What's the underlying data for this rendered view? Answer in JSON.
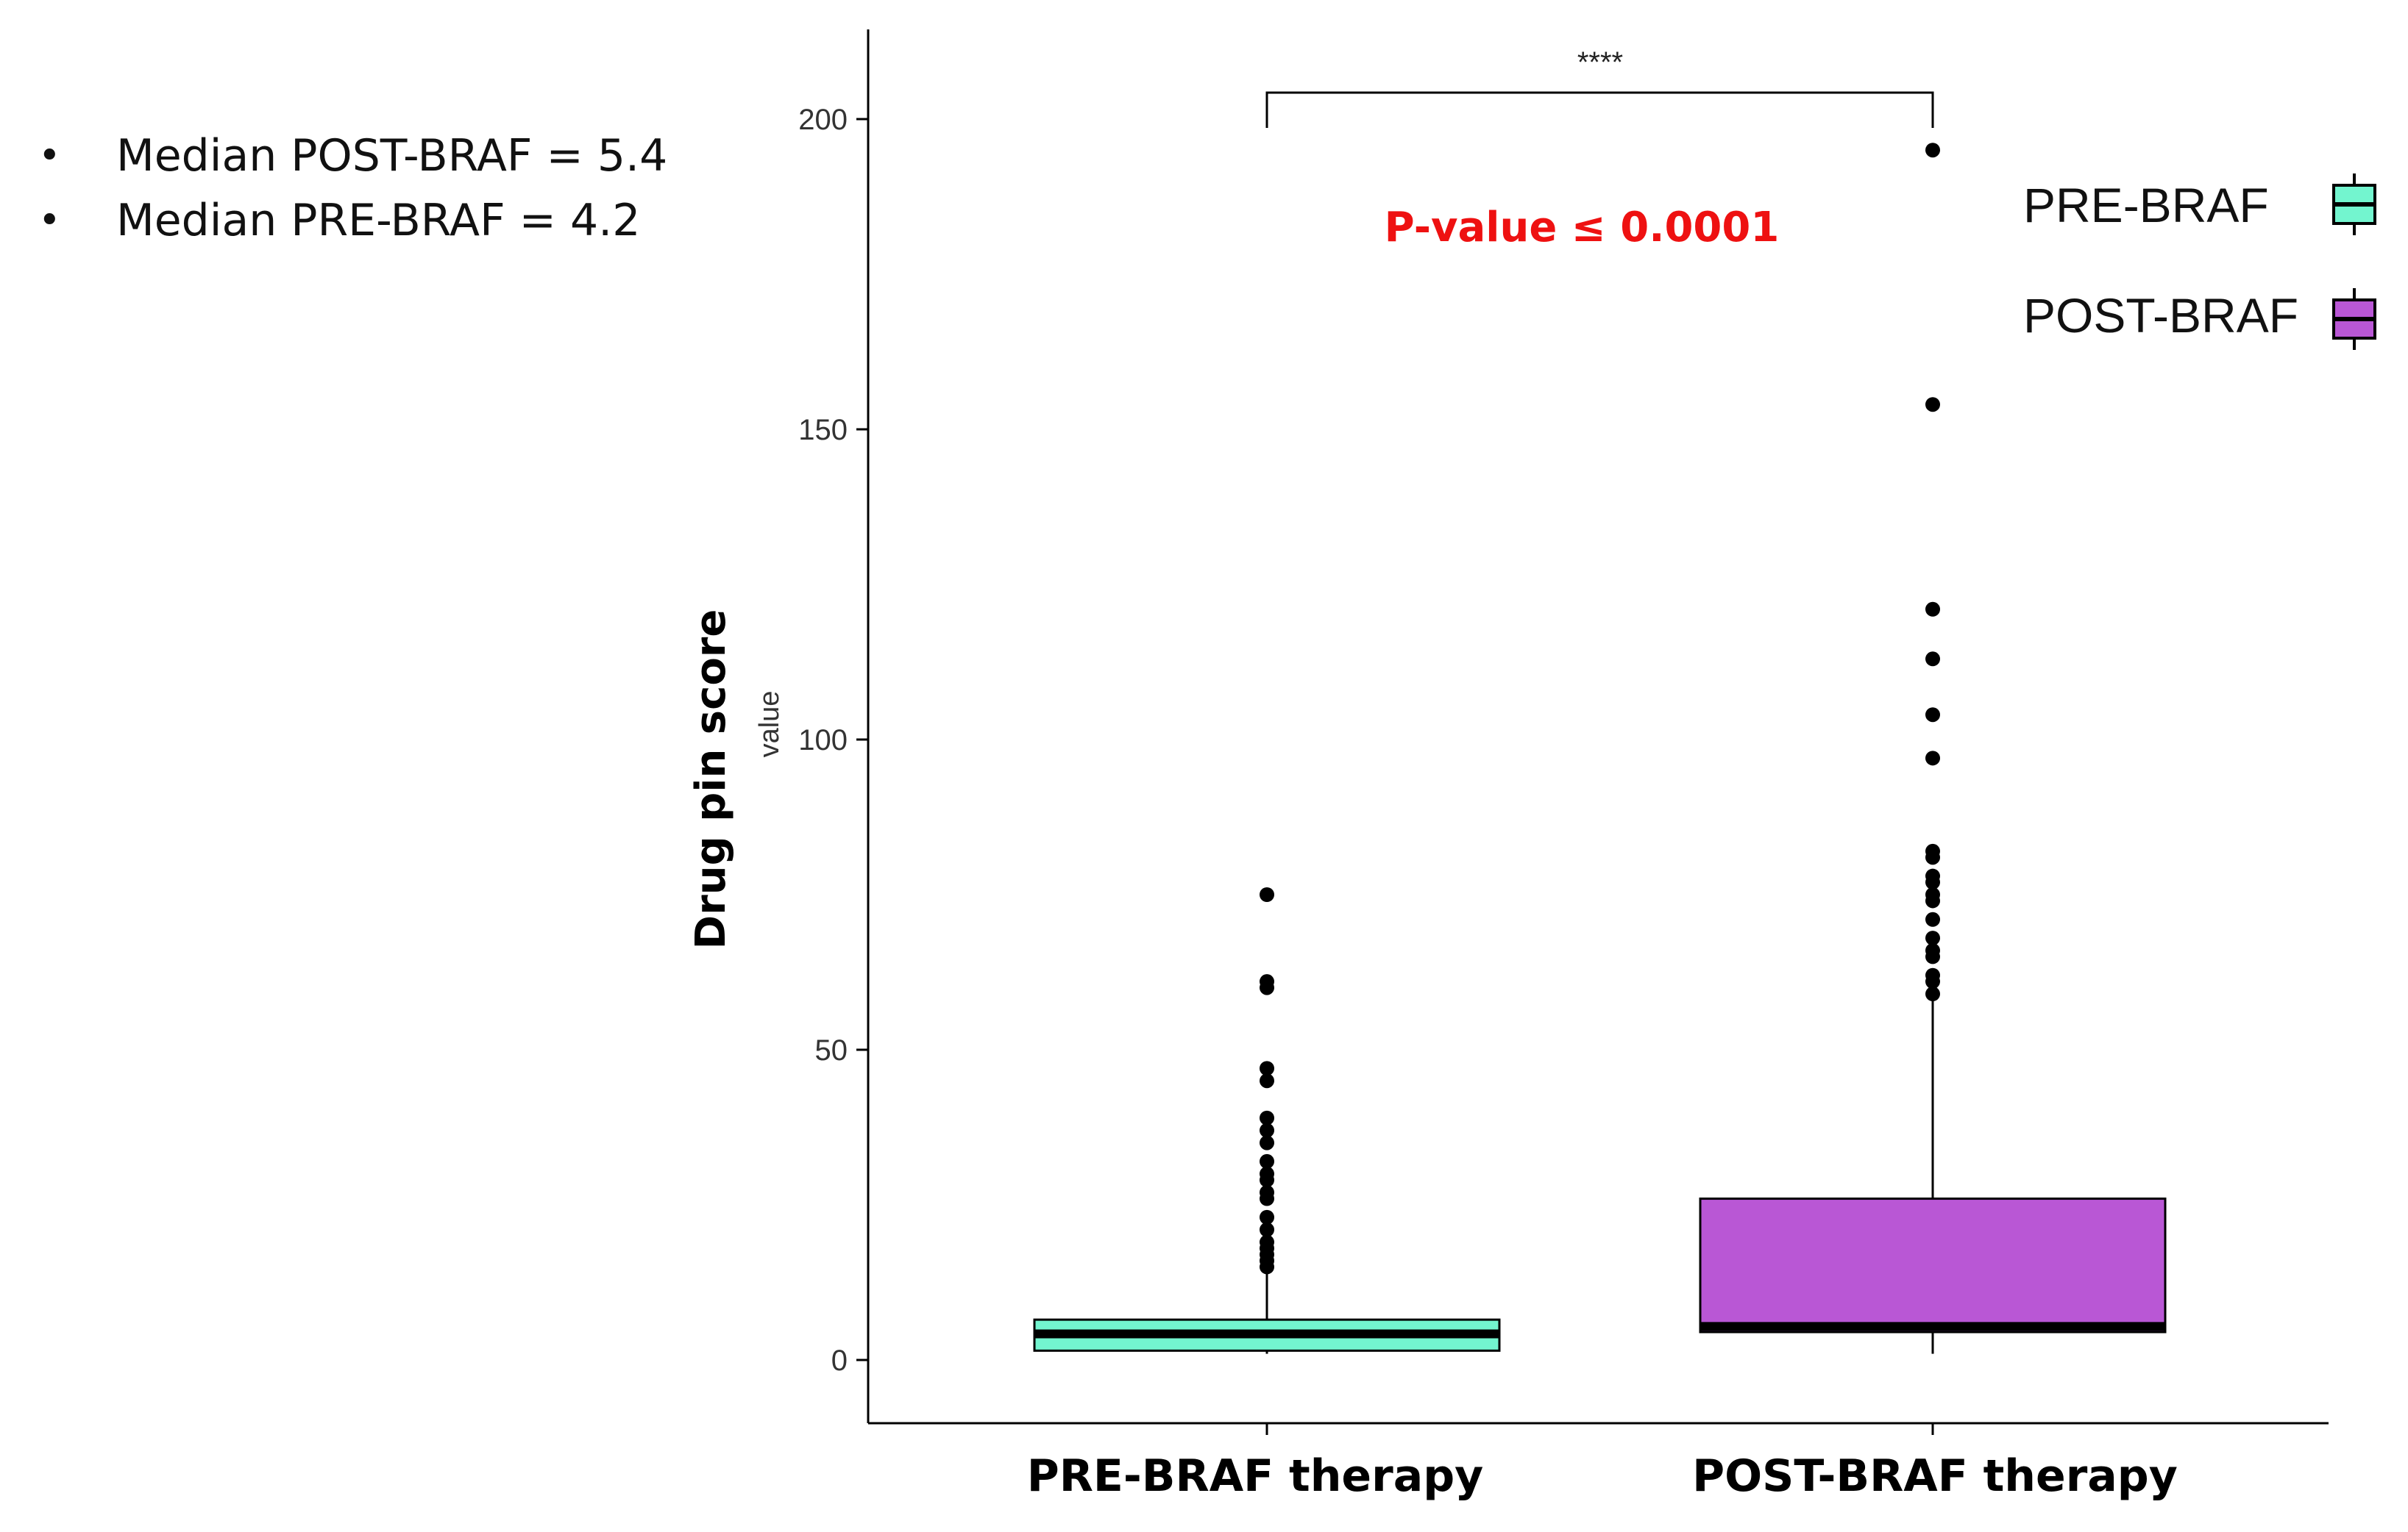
{
  "notes": [
    "Median POST-BRAF = 5.4",
    "Median PRE-BRAF = 4.2"
  ],
  "annotation_text": "P-value ≤ 0.0001",
  "annotation_color": "#ee1111",
  "chart_data": {
    "type": "boxplot",
    "ylabel": "Drug pin score",
    "ylabel_secondary": "value",
    "yticks": [
      0,
      50,
      100,
      150,
      200
    ],
    "ylim": [
      -10,
      214
    ],
    "categories": [
      "PRE-BRAF therapy",
      "POST-BRAF therapy"
    ],
    "significance": "****",
    "legend": {
      "placement": "top-right",
      "entries": [
        "PRE-BRAF",
        "POST-BRAF"
      ]
    },
    "series": [
      {
        "name": "PRE-BRAF",
        "color": "#73f5cf",
        "whisker_low": 1,
        "q1": 1.5,
        "median": 4.2,
        "q3": 6.5,
        "whisker_high": 15,
        "outliers": [
          15,
          16,
          17,
          18,
          19,
          21,
          23,
          26,
          27,
          29,
          30,
          32,
          35,
          37,
          39,
          45,
          47,
          60,
          61,
          75
        ]
      },
      {
        "name": "POST-BRAF",
        "color": "#b957d5",
        "whisker_low": 1,
        "q1": 4.5,
        "median": 5.4,
        "q3": 26,
        "whisker_high": 58,
        "outliers": [
          59,
          61,
          62,
          65,
          66,
          68,
          71,
          74,
          75,
          77,
          78,
          81,
          82,
          97,
          104,
          113,
          121,
          154,
          195
        ]
      }
    ]
  }
}
